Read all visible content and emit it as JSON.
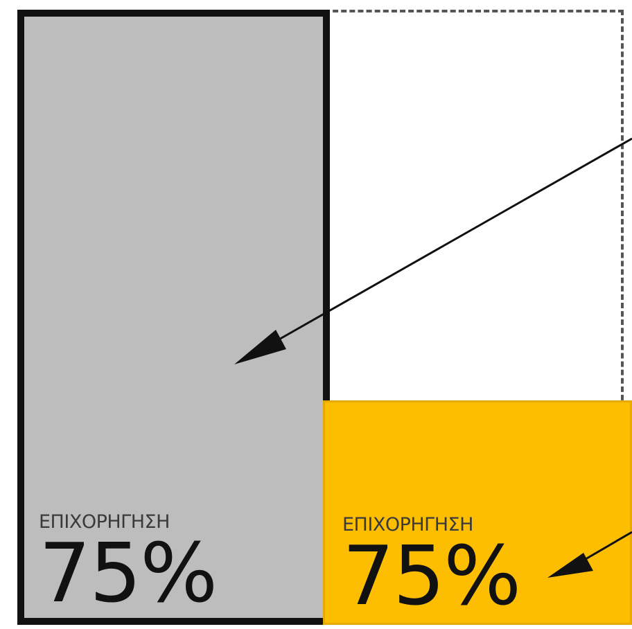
{
  "panels": {
    "grey": {
      "caption": "ΕΠΙΧΟΡΗΓΗΣΗ",
      "value": "75%",
      "color": "#bdbdbd"
    },
    "yellow": {
      "caption": "ΕΠΙΧΟΡΗΓΗΣΗ",
      "value": "75%",
      "color": "#fdbd00"
    }
  },
  "colors": {
    "frame": "#111111",
    "dashed_border": "#555555"
  }
}
